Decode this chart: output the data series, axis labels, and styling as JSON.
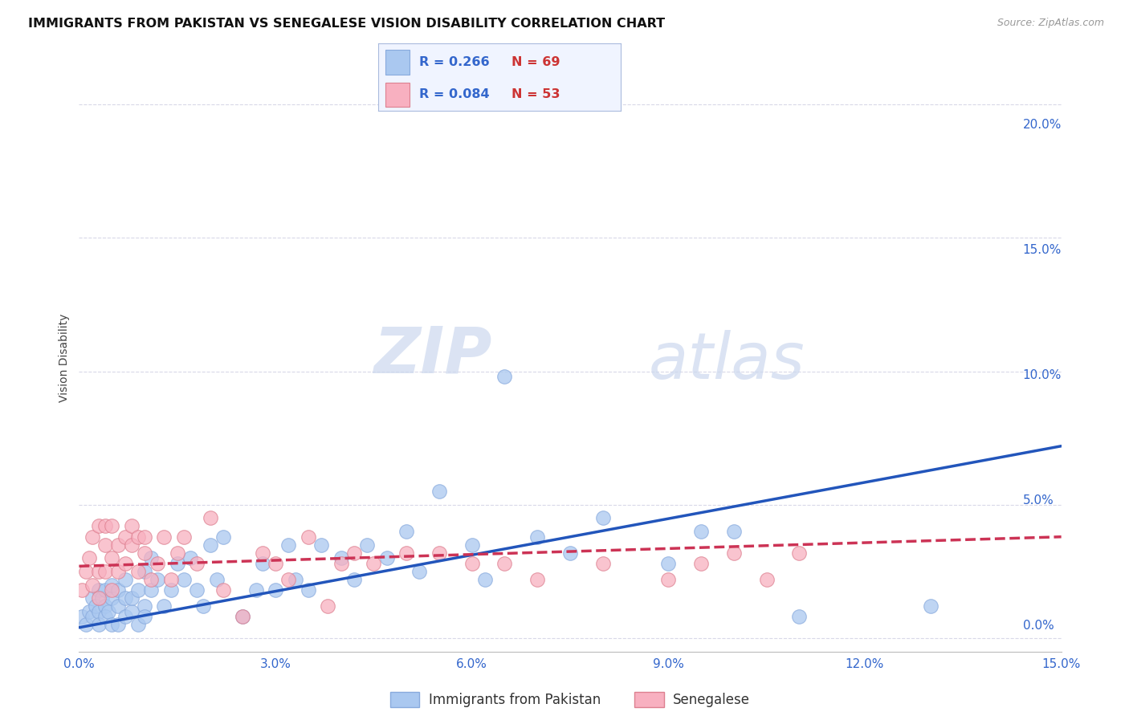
{
  "title": "IMMIGRANTS FROM PAKISTAN VS SENEGALESE VISION DISABILITY CORRELATION CHART",
  "source": "Source: ZipAtlas.com",
  "ylabel": "Vision Disability",
  "xlim": [
    0.0,
    0.15
  ],
  "ylim": [
    -0.005,
    0.215
  ],
  "xticks": [
    0.0,
    0.03,
    0.06,
    0.09,
    0.12,
    0.15
  ],
  "yticks": [
    0.0,
    0.05,
    0.1,
    0.15,
    0.2
  ],
  "ytick_labels_right": [
    "0.0%",
    "5.0%",
    "10.0%",
    "15.0%",
    "20.0%"
  ],
  "xtick_labels": [
    "0.0%",
    "3.0%",
    "6.0%",
    "9.0%",
    "12.0%",
    "15.0%"
  ],
  "background_color": "#ffffff",
  "grid_color": "#d8d8e8",
  "watermark_zip": "ZIP",
  "watermark_atlas": "atlas",
  "series": [
    {
      "name": "Immigrants from Pakistan",
      "R": 0.266,
      "N": 69,
      "color_fill": "#aac8f0",
      "color_edge": "#88aadd",
      "line_color": "#2255bb",
      "line_style": "-",
      "x": [
        0.0005,
        0.001,
        0.0015,
        0.002,
        0.002,
        0.0025,
        0.003,
        0.003,
        0.003,
        0.0035,
        0.004,
        0.004,
        0.004,
        0.0045,
        0.005,
        0.005,
        0.005,
        0.006,
        0.006,
        0.006,
        0.007,
        0.007,
        0.007,
        0.008,
        0.008,
        0.009,
        0.009,
        0.01,
        0.01,
        0.01,
        0.011,
        0.011,
        0.012,
        0.013,
        0.014,
        0.015,
        0.016,
        0.017,
        0.018,
        0.019,
        0.02,
        0.021,
        0.022,
        0.025,
        0.027,
        0.028,
        0.03,
        0.032,
        0.033,
        0.035,
        0.037,
        0.04,
        0.042,
        0.044,
        0.047,
        0.05,
        0.052,
        0.055,
        0.06,
        0.062,
        0.065,
        0.07,
        0.075,
        0.08,
        0.09,
        0.095,
        0.1,
        0.11,
        0.13
      ],
      "y": [
        0.008,
        0.005,
        0.01,
        0.015,
        0.008,
        0.012,
        0.018,
        0.01,
        0.005,
        0.015,
        0.012,
        0.008,
        0.018,
        0.01,
        0.015,
        0.005,
        0.02,
        0.012,
        0.018,
        0.005,
        0.015,
        0.008,
        0.022,
        0.01,
        0.015,
        0.018,
        0.005,
        0.025,
        0.012,
        0.008,
        0.018,
        0.03,
        0.022,
        0.012,
        0.018,
        0.028,
        0.022,
        0.03,
        0.018,
        0.012,
        0.035,
        0.022,
        0.038,
        0.008,
        0.018,
        0.028,
        0.018,
        0.035,
        0.022,
        0.018,
        0.035,
        0.03,
        0.022,
        0.035,
        0.03,
        0.04,
        0.025,
        0.055,
        0.035,
        0.022,
        0.098,
        0.038,
        0.032,
        0.045,
        0.028,
        0.04,
        0.04,
        0.008,
        0.012
      ],
      "trend_x": [
        0.0,
        0.15
      ],
      "trend_y": [
        0.004,
        0.072
      ]
    },
    {
      "name": "Senegalese",
      "R": 0.084,
      "N": 53,
      "color_fill": "#f8b0c0",
      "color_edge": "#dd8090",
      "line_color": "#cc3355",
      "line_style": "--",
      "x": [
        0.0005,
        0.001,
        0.0015,
        0.002,
        0.002,
        0.003,
        0.003,
        0.003,
        0.004,
        0.004,
        0.004,
        0.005,
        0.005,
        0.005,
        0.006,
        0.006,
        0.007,
        0.007,
        0.008,
        0.008,
        0.009,
        0.009,
        0.01,
        0.01,
        0.011,
        0.012,
        0.013,
        0.014,
        0.015,
        0.016,
        0.018,
        0.02,
        0.022,
        0.025,
        0.028,
        0.03,
        0.032,
        0.035,
        0.038,
        0.04,
        0.042,
        0.045,
        0.05,
        0.055,
        0.06,
        0.065,
        0.07,
        0.08,
        0.09,
        0.095,
        0.1,
        0.105,
        0.11
      ],
      "y": [
        0.018,
        0.025,
        0.03,
        0.038,
        0.02,
        0.042,
        0.025,
        0.015,
        0.035,
        0.025,
        0.042,
        0.03,
        0.042,
        0.018,
        0.035,
        0.025,
        0.038,
        0.028,
        0.035,
        0.042,
        0.038,
        0.025,
        0.032,
        0.038,
        0.022,
        0.028,
        0.038,
        0.022,
        0.032,
        0.038,
        0.028,
        0.045,
        0.018,
        0.008,
        0.032,
        0.028,
        0.022,
        0.038,
        0.012,
        0.028,
        0.032,
        0.028,
        0.032,
        0.032,
        0.028,
        0.028,
        0.022,
        0.028,
        0.022,
        0.028,
        0.032,
        0.022,
        0.032
      ],
      "trend_x": [
        0.0,
        0.15
      ],
      "trend_y": [
        0.027,
        0.038
      ]
    }
  ],
  "legend_R_color": "#3366cc",
  "legend_N_color": "#cc3333",
  "title_fontsize": 11.5,
  "source_fontsize": 9,
  "axis_tick_fontsize": 11,
  "ylabel_fontsize": 10
}
